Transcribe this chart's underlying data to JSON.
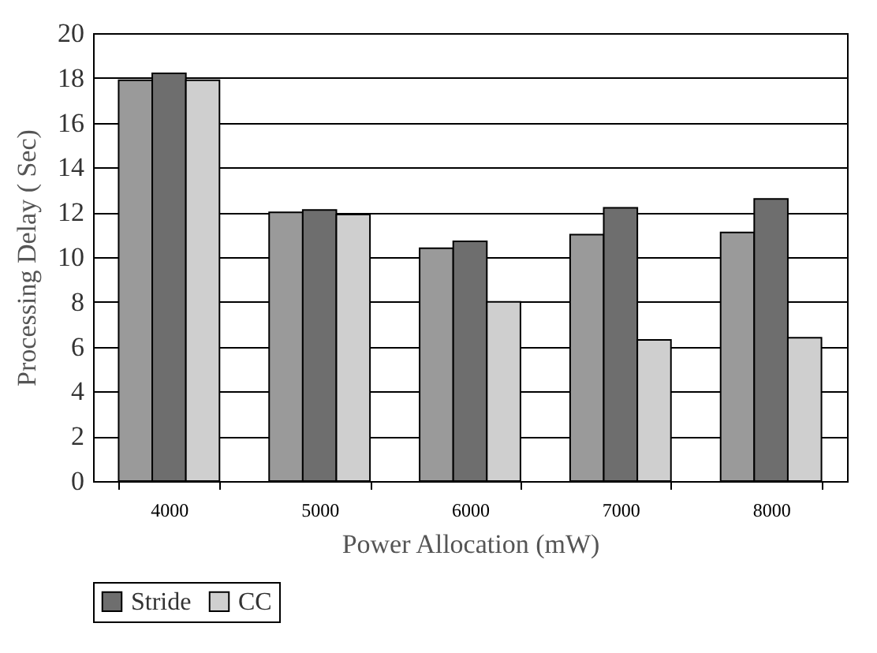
{
  "chart_data": {
    "type": "bar",
    "xlabel": "Power Allocation (mW)",
    "ylabel": "Processing Delay ( Sec)",
    "categories": [
      "4000",
      "5000",
      "6000",
      "7000",
      "8000"
    ],
    "series": [
      {
        "color": "#9a9a9a",
        "values": [
          17.9,
          12.0,
          10.4,
          11.0,
          11.1
        ]
      },
      {
        "name": "Stride",
        "color": "#6e6e6e",
        "values": [
          18.2,
          12.1,
          10.7,
          12.2,
          12.6
        ]
      },
      {
        "name": "CC",
        "color": "#cfcfcf",
        "values": [
          17.9,
          11.9,
          8.0,
          6.3,
          6.4
        ]
      }
    ],
    "ylim": [
      0,
      20
    ],
    "yticks": [
      0,
      2,
      4,
      6,
      8,
      10,
      12,
      14,
      16,
      18,
      20
    ],
    "grid": "y",
    "legend": "bottom"
  }
}
